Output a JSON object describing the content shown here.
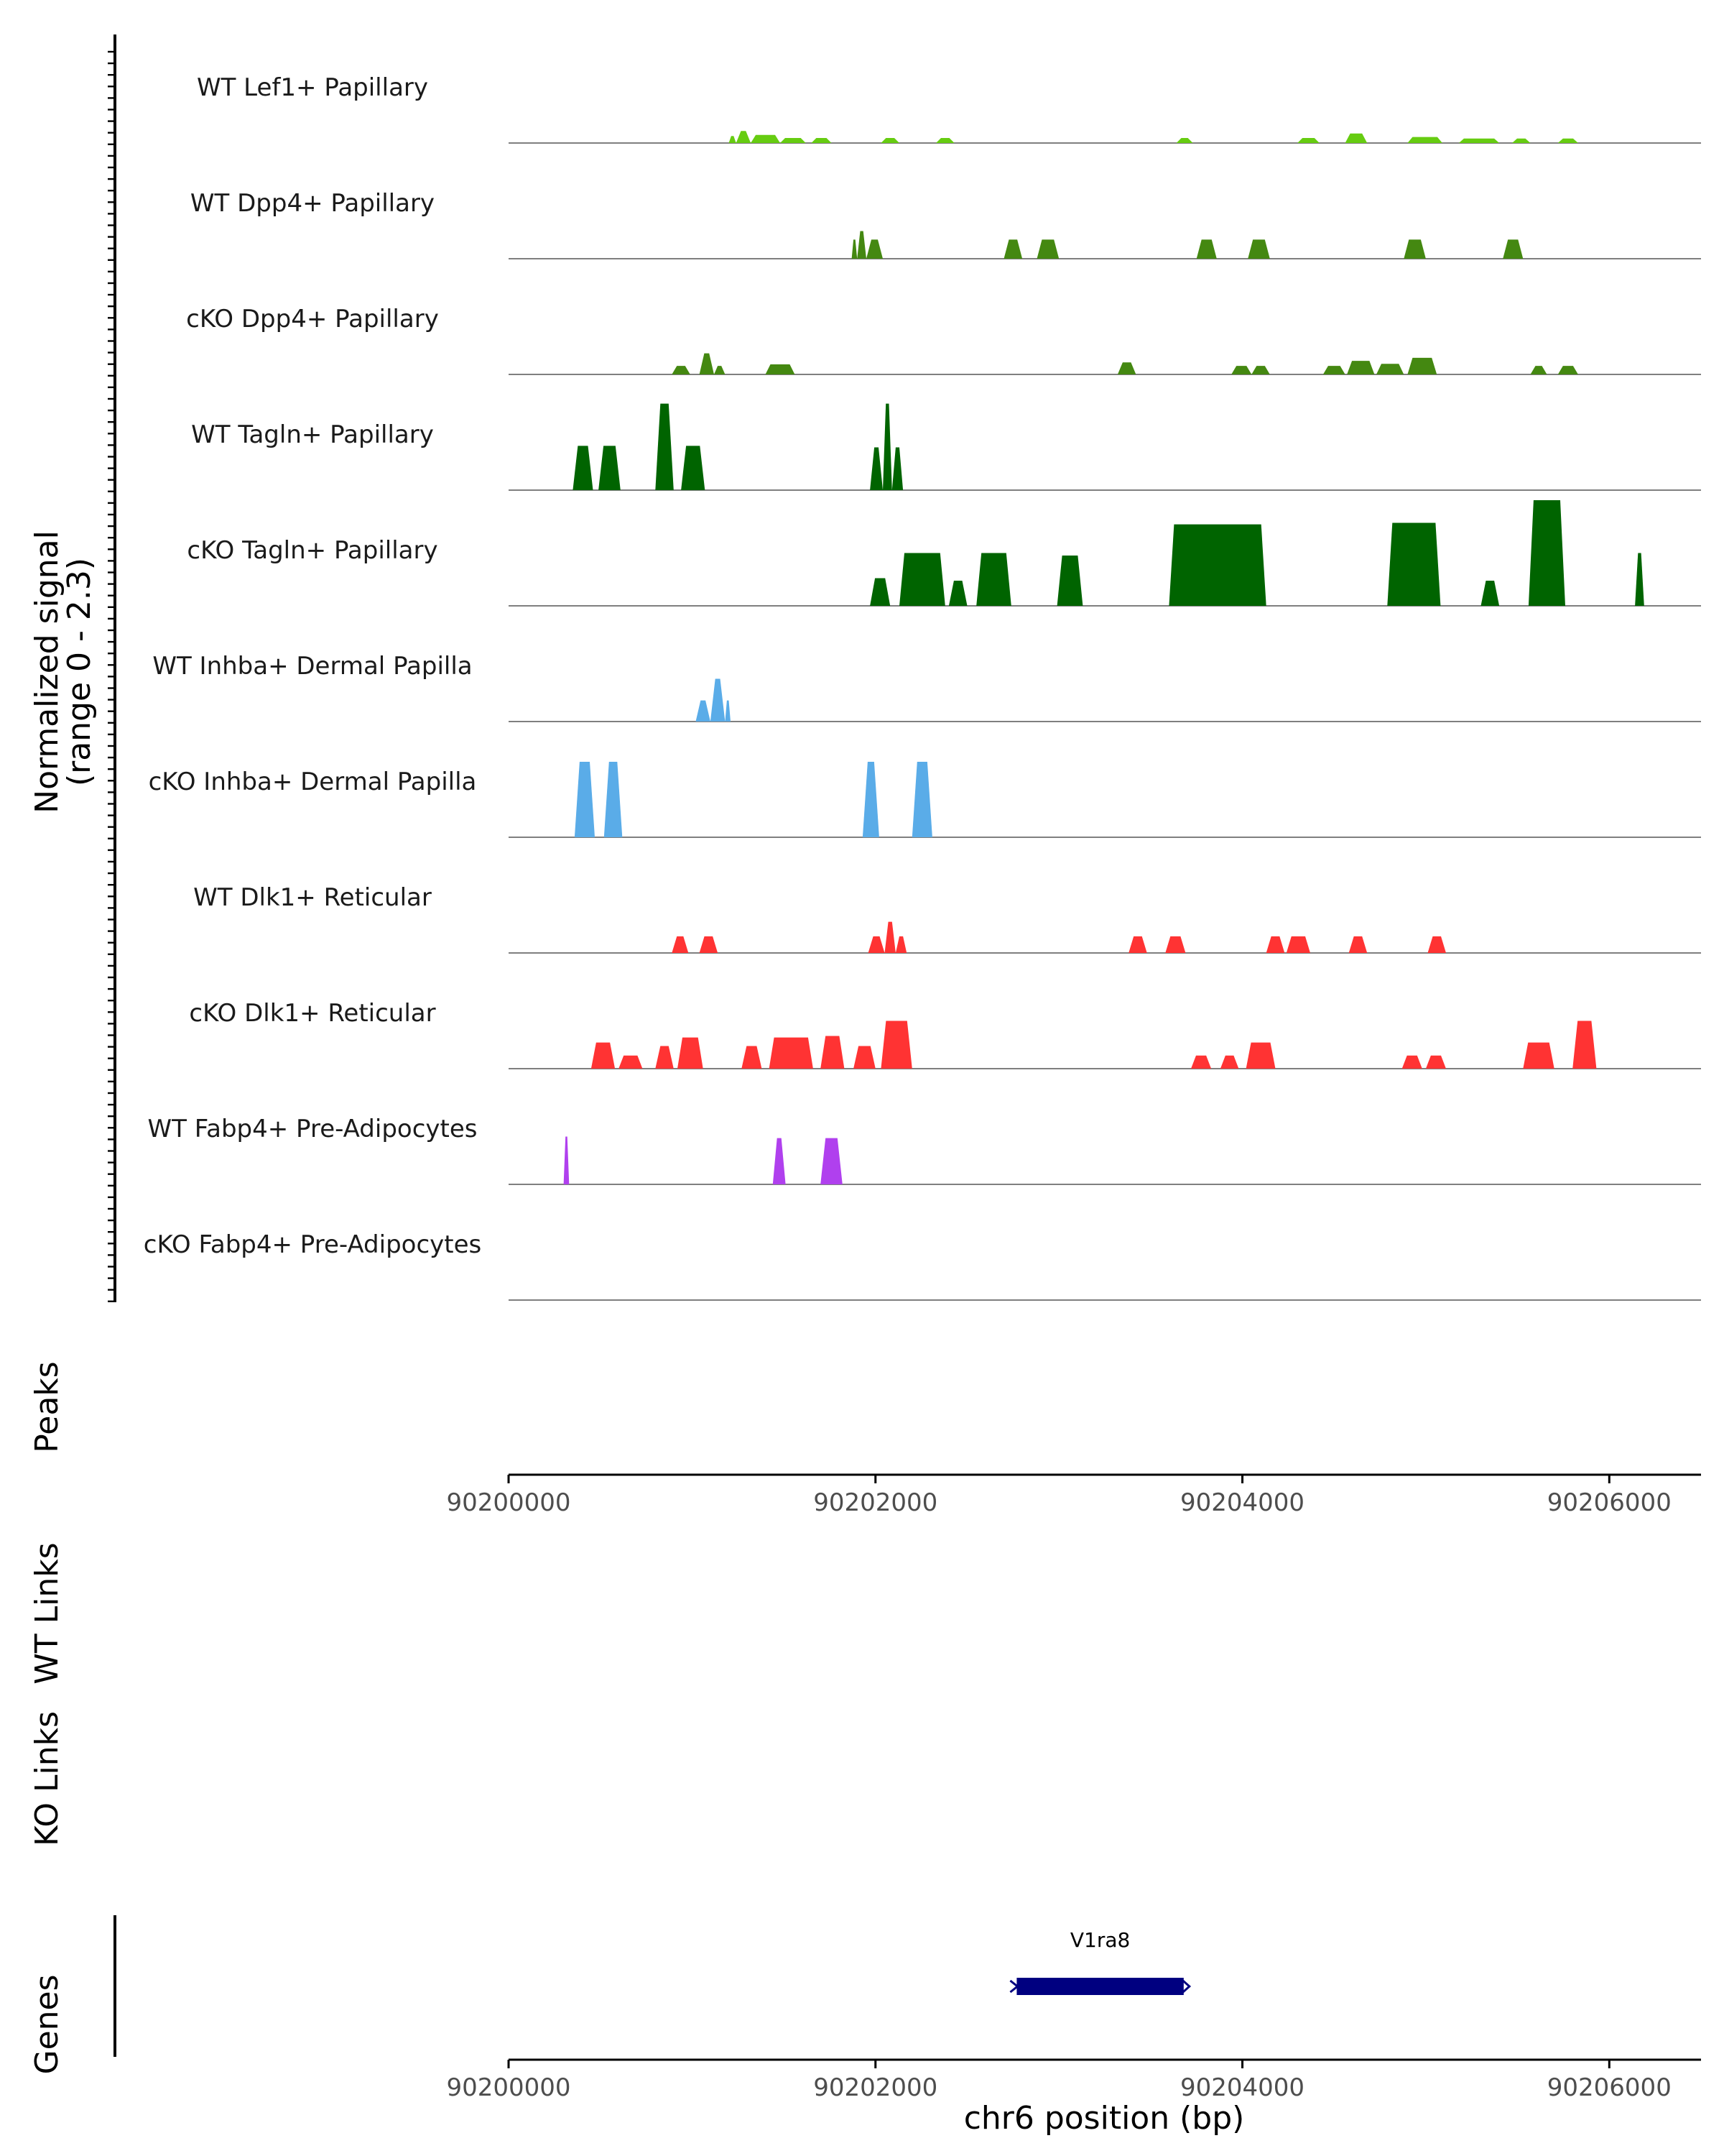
{
  "chart_data": {
    "type": "area",
    "title": "",
    "ylabel": "Normalized signal",
    "ylabel_range": "(range 0 - 2.3)",
    "yrange": [
      0,
      2.3
    ],
    "xlabel": "chr6 position (bp)",
    "xlim": [
      90200000,
      90206500
    ],
    "xticks": [
      90200000,
      90202000,
      90204000,
      90206000
    ],
    "xtick_labels": [
      "90200000",
      "90202000",
      "90204000",
      "90206000"
    ],
    "colors": {
      "lef1": "#66cc11",
      "dpp4": "#448811",
      "tagln": "#006400",
      "inhba": "#5aace8",
      "dlk1": "#ff3333",
      "fabp4": "#b040ee",
      "gene": "#000080"
    },
    "tracks": [
      {
        "name": "WT Lef1+ Papillary",
        "color_key": "lef1",
        "peaks": [
          [
            90201200,
            90201240,
            0.14
          ],
          [
            90201240,
            90201320,
            0.24
          ],
          [
            90201320,
            90201480,
            0.16
          ],
          [
            90201480,
            90201620,
            0.1
          ],
          [
            90201650,
            90201760,
            0.1
          ],
          [
            90202030,
            90202130,
            0.1
          ],
          [
            90202330,
            90202430,
            0.1
          ],
          [
            90203640,
            90203730,
            0.1
          ],
          [
            90204300,
            90204420,
            0.1
          ],
          [
            90204560,
            90204680,
            0.19
          ],
          [
            90204900,
            90205090,
            0.12
          ],
          [
            90205180,
            90205400,
            0.09
          ],
          [
            90205470,
            90205570,
            0.09
          ],
          [
            90205720,
            90205830,
            0.09
          ]
        ]
      },
      {
        "name": "WT Dpp4+ Papillary",
        "color_key": "dpp4",
        "peaks": [
          [
            90201870,
            90201900,
            0.38
          ],
          [
            90201900,
            90201950,
            0.55
          ],
          [
            90201950,
            90202040,
            0.38
          ],
          [
            90202700,
            90202800,
            0.38
          ],
          [
            90202880,
            90203000,
            0.38
          ],
          [
            90203750,
            90203860,
            0.38
          ],
          [
            90204030,
            90204150,
            0.38
          ],
          [
            90204880,
            90205000,
            0.38
          ],
          [
            90205420,
            90205530,
            0.38
          ]
        ]
      },
      {
        "name": "cKO Dpp4+ Papillary",
        "color_key": "dpp4",
        "peaks": [
          [
            90200890,
            90200990,
            0.17
          ],
          [
            90201040,
            90201120,
            0.42
          ],
          [
            90201120,
            90201180,
            0.17
          ],
          [
            90201400,
            90201560,
            0.2
          ],
          [
            90203320,
            90203420,
            0.24
          ],
          [
            90203940,
            90204050,
            0.17
          ],
          [
            90204050,
            90204150,
            0.17
          ],
          [
            90204440,
            90204560,
            0.17
          ],
          [
            90204570,
            90204720,
            0.27
          ],
          [
            90204730,
            90204880,
            0.21
          ],
          [
            90204900,
            90205060,
            0.33
          ],
          [
            90205570,
            90205660,
            0.17
          ],
          [
            90205720,
            90205830,
            0.17
          ]
        ]
      },
      {
        "name": "WT Tagln+ Papillary",
        "color_key": "tagln",
        "peaks": [
          [
            90200350,
            90200460,
            0.88
          ],
          [
            90200490,
            90200610,
            0.88
          ],
          [
            90200800,
            90200900,
            1.72
          ],
          [
            90200940,
            90201070,
            0.88
          ],
          [
            90201970,
            90202040,
            0.85
          ],
          [
            90202040,
            90202090,
            1.72
          ],
          [
            90202090,
            90202150,
            0.85
          ]
        ]
      },
      {
        "name": "cKO Tagln+ Papillary",
        "color_key": "tagln",
        "peaks": [
          [
            90201970,
            90202080,
            0.55
          ],
          [
            90202130,
            90202380,
            1.05
          ],
          [
            90202400,
            90202500,
            0.5
          ],
          [
            90202550,
            90202740,
            1.05
          ],
          [
            90202990,
            90203130,
            1.0
          ],
          [
            90203600,
            90204130,
            1.62
          ],
          [
            90204790,
            90205080,
            1.65
          ],
          [
            90205300,
            90205400,
            0.5
          ],
          [
            90205560,
            90205760,
            2.1
          ],
          [
            90206140,
            90206190,
            1.05
          ]
        ]
      },
      {
        "name": "WT Inhba+ Dermal Papilla",
        "color_key": "inhba",
        "peaks": [
          [
            90201020,
            90201100,
            0.42
          ],
          [
            90201100,
            90201180,
            0.85
          ],
          [
            90201180,
            90201210,
            0.42
          ]
        ]
      },
      {
        "name": "cKO Inhba+ Dermal Papilla",
        "color_key": "inhba",
        "peaks": [
          [
            90200360,
            90200470,
            1.5
          ],
          [
            90200520,
            90200620,
            1.5
          ],
          [
            90201930,
            90202020,
            1.5
          ],
          [
            90202200,
            90202310,
            1.5
          ]
        ]
      },
      {
        "name": "WT Dlk1+ Reticular",
        "color_key": "dlk1",
        "peaks": [
          [
            90200890,
            90200980,
            0.33
          ],
          [
            90201040,
            90201140,
            0.33
          ],
          [
            90201960,
            90202050,
            0.33
          ],
          [
            90202050,
            90202110,
            0.62
          ],
          [
            90202110,
            90202170,
            0.33
          ],
          [
            90203380,
            90203480,
            0.33
          ],
          [
            90203580,
            90203690,
            0.33
          ],
          [
            90204130,
            90204230,
            0.33
          ],
          [
            90204240,
            90204370,
            0.33
          ],
          [
            90204580,
            90204680,
            0.33
          ],
          [
            90205010,
            90205110,
            0.33
          ]
        ]
      },
      {
        "name": "cKO Dlk1+ Reticular",
        "color_key": "dlk1",
        "peaks": [
          [
            90200450,
            90200580,
            0.52
          ],
          [
            90200600,
            90200730,
            0.26
          ],
          [
            90200800,
            90200900,
            0.45
          ],
          [
            90200920,
            90201060,
            0.62
          ],
          [
            90201270,
            90201380,
            0.45
          ],
          [
            90201420,
            90201660,
            0.62
          ],
          [
            90201700,
            90201830,
            0.65
          ],
          [
            90201880,
            90202000,
            0.45
          ],
          [
            90202030,
            90202200,
            0.95
          ],
          [
            90203720,
            90203830,
            0.26
          ],
          [
            90203880,
            90203980,
            0.26
          ],
          [
            90204020,
            90204180,
            0.52
          ],
          [
            90204870,
            90204980,
            0.26
          ],
          [
            90205000,
            90205110,
            0.26
          ],
          [
            90205530,
            90205700,
            0.52
          ],
          [
            90205800,
            90205930,
            0.95
          ]
        ]
      },
      {
        "name": "WT Fabp4+ Pre-Adipocytes",
        "color_key": "fabp4",
        "peaks": [
          [
            90200300,
            90200330,
            0.95
          ],
          [
            90201440,
            90201510,
            0.92
          ],
          [
            90201700,
            90201820,
            0.92
          ]
        ]
      },
      {
        "name": "cKO Fabp4+ Pre-Adipocytes",
        "color_key": "fabp4",
        "peaks": []
      }
    ],
    "side_labels": [
      "Peaks",
      "WT Links",
      "KO Links",
      "Genes"
    ],
    "genes": [
      {
        "name": "V1ra8",
        "start": 90202770,
        "end": 90203680
      }
    ]
  }
}
